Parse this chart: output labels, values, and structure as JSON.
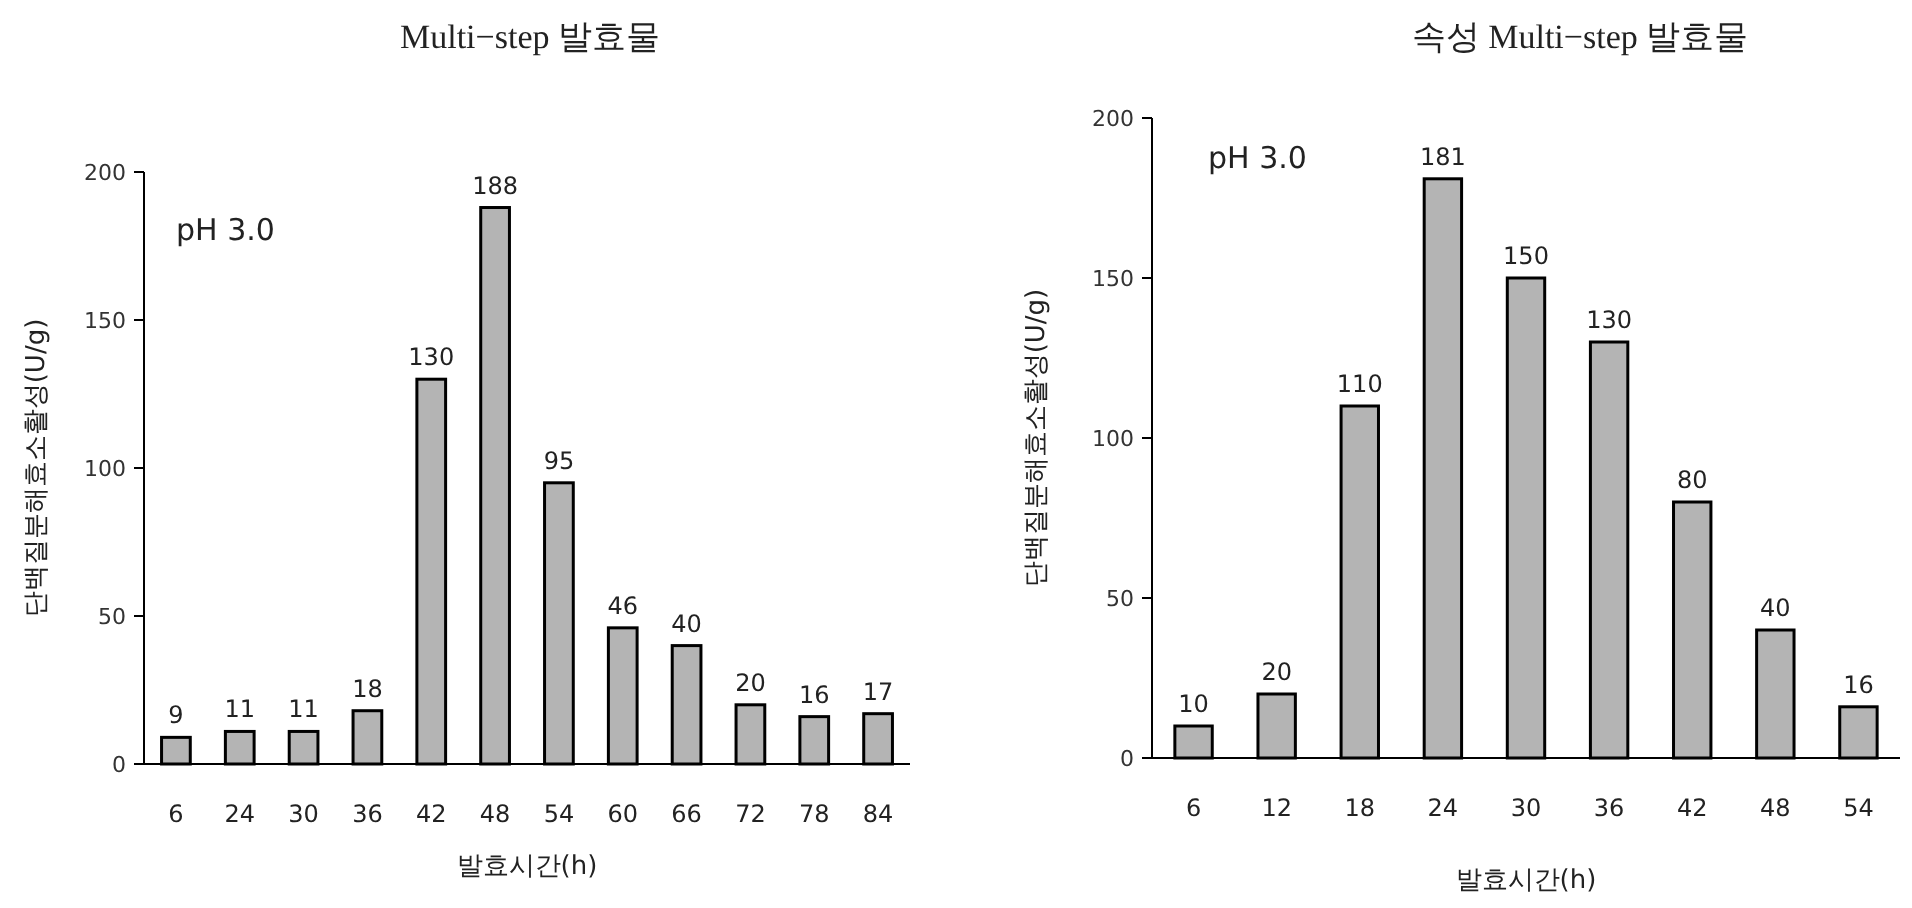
{
  "chart_data": [
    {
      "type": "bar",
      "title": "Multi−step 발효물",
      "xlabel": "발효시간(h)",
      "ylabel": "단백질분해효소활성(U/g)",
      "annotations": [
        "pH 3.0"
      ],
      "categories": [
        "6",
        "24",
        "30",
        "36",
        "42",
        "48",
        "54",
        "60",
        "66",
        "72",
        "78",
        "84"
      ],
      "values": [
        9,
        11,
        11,
        18,
        130,
        188,
        95,
        46,
        40,
        20,
        16,
        17
      ],
      "color": "#b4b4b4",
      "ylim": [
        0,
        200
      ],
      "yticks": [
        0,
        50,
        100,
        150,
        200
      ],
      "data_labels": true
    },
    {
      "type": "bar",
      "title": "속성 Multi−step 발효물",
      "xlabel": "발효시간(h)",
      "ylabel": "단백질분해효소활성(U/g)",
      "annotations": [
        "pH 3.0"
      ],
      "categories": [
        "6",
        "12",
        "18",
        "24",
        "30",
        "36",
        "42",
        "48",
        "54"
      ],
      "values": [
        10,
        20,
        110,
        181,
        150,
        130,
        80,
        40,
        16
      ],
      "color": "#b4b4b4",
      "ylim": [
        0,
        200
      ],
      "yticks": [
        0,
        50,
        100,
        150,
        200
      ],
      "data_labels": true
    }
  ]
}
